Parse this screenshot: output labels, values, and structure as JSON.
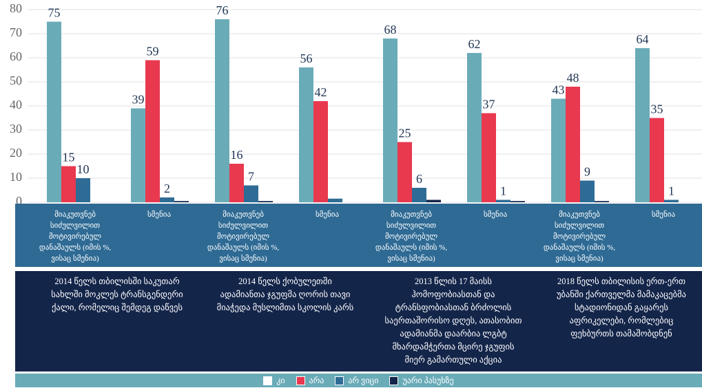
{
  "chart_data": {
    "type": "bar",
    "categories": [
      "მიაკუთვნებ სიძულვილით მოტივირებულ დანაშაულს (იმის %, ვისაც სმენია)",
      "სმენია",
      "მიაკუთვნებ სიძულვილით მოტივირებულ დანაშაულს (იმის %, ვისაც სმენია)",
      "სმენია",
      "მიაკუთვნებ სიძულვილით მოტივირებულ დანაშაულს (იმის %, ვისაც სმენია)",
      "სმენია",
      "მიაკუთვნებ სიძულვილით მოტივირებულ დანაშაულს (იმის %, ვისაც სმენია)",
      "სმენია"
    ],
    "group_labels": [
      "2014 წელს თბილისში საკუთარ სახლში მოკლეს ტრანსგენდერი ქალი, რომელიც შემდეგ დაწვეს",
      "2014 წელს ქობულეთში ადამიანთა ჯგუფმა ღორის თავი მიაჭედა მუსლიმთა სკოლის კარს",
      "2013 წლის 17 მაისს ჰომოფობიასთან და ტრანსფობიასთან ბრძოლის საერთაშორისო დღეს, ათასობით ადამიანმა დაარბია ლგბტ მხარდამჭერთა მცირე ჯგუფის მიერ გამართული აქცია",
      "2018 წელს თბილისის ერთ-ერთ უბანში ქართველმა მამაკაცებმა სტადიონიდან გაყარეს აფრიკელები, რომლებიც ფეხბურთს თამაშობდნენ"
    ],
    "series": [
      {
        "name": "კი",
        "color": "#6aabb8",
        "values": [
          75,
          39,
          76,
          56,
          68,
          62,
          43,
          64
        ],
        "value_labels": [
          "75",
          "39",
          "76",
          "56",
          "68",
          "62",
          "43",
          "64"
        ]
      },
      {
        "name": "არა",
        "color": "#e8394f",
        "values": [
          15,
          59,
          16,
          42,
          25,
          37,
          48,
          35
        ],
        "value_labels": [
          "15",
          "59",
          "16",
          "42",
          "25",
          "37",
          "48",
          "35"
        ]
      },
      {
        "name": "არ ვიცი",
        "color": "#2e6c96",
        "values": [
          10,
          2,
          7,
          1.5,
          6,
          1,
          9,
          1
        ],
        "value_labels": [
          "10",
          "2",
          "7",
          null,
          "6",
          "1",
          "9",
          "1"
        ]
      },
      {
        "name": "უარი პასუხზე",
        "color": "#14254a",
        "values": [
          0,
          0.5,
          0.5,
          0,
          1,
          0.5,
          0.5,
          0
        ]
      }
    ],
    "ylim": [
      0,
      80
    ],
    "yticks": [
      0,
      10,
      20,
      30,
      40,
      50,
      60,
      70,
      80
    ],
    "grid": true
  }
}
